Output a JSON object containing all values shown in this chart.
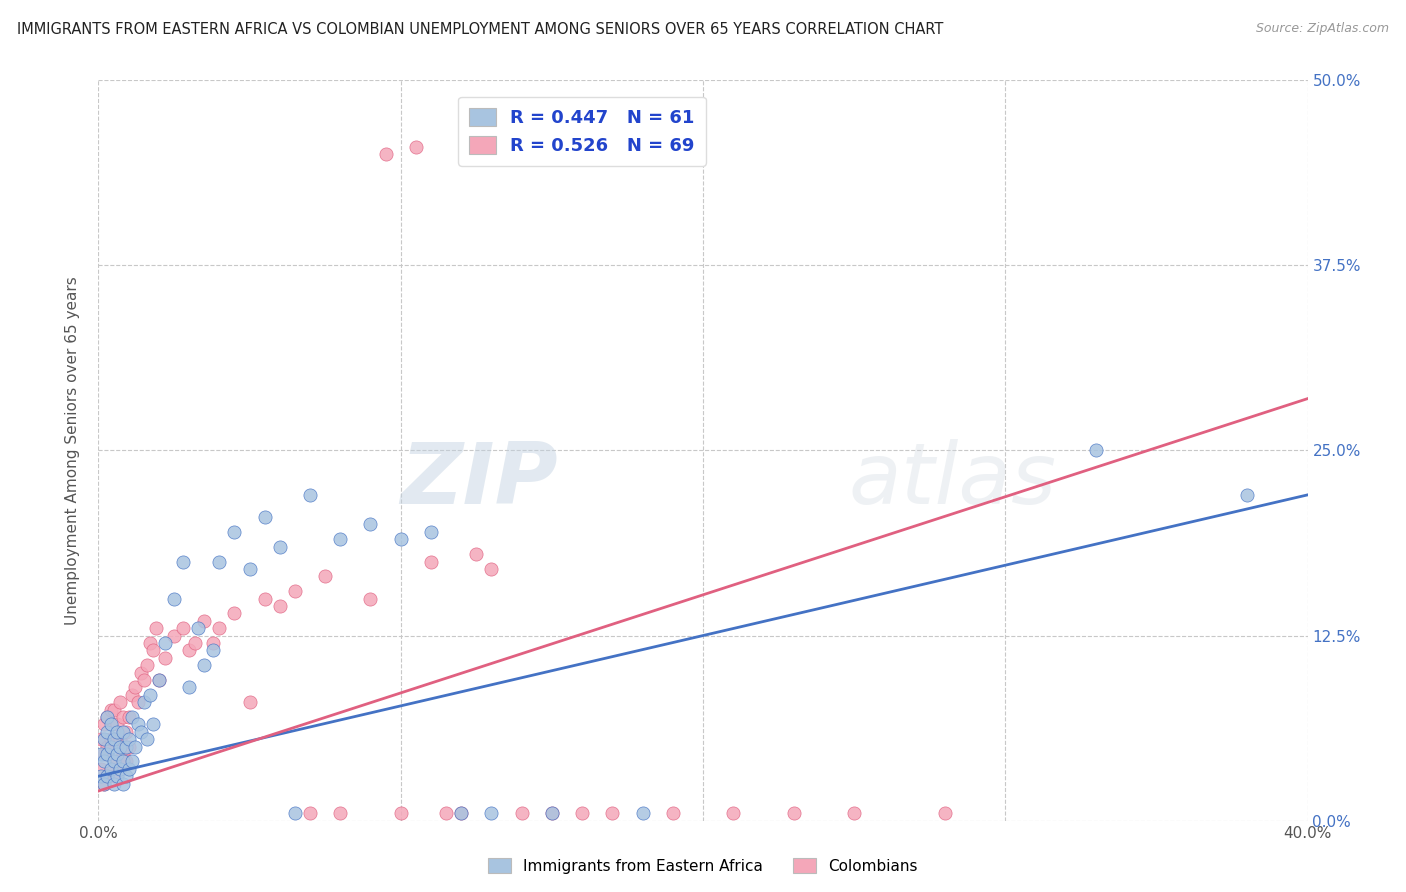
{
  "title": "IMMIGRANTS FROM EASTERN AFRICA VS COLOMBIAN UNEMPLOYMENT AMONG SENIORS OVER 65 YEARS CORRELATION CHART",
  "source": "Source: ZipAtlas.com",
  "ylabel": "Unemployment Among Seniors over 65 years",
  "xlim": [
    0.0,
    0.4
  ],
  "ylim": [
    0.0,
    0.5
  ],
  "watermark": "ZIPatlas",
  "legend_blue_label": "Immigrants from Eastern Africa",
  "legend_pink_label": "Colombians",
  "R_blue": 0.447,
  "N_blue": 61,
  "R_pink": 0.526,
  "N_pink": 69,
  "color_blue": "#a8c4e0",
  "color_pink": "#f4a7b9",
  "line_blue": "#4472c4",
  "line_pink": "#e06080",
  "background": "#ffffff",
  "grid_color": "#c8c8c8",
  "blue_scatter_x": [
    0.001,
    0.001,
    0.002,
    0.002,
    0.002,
    0.003,
    0.003,
    0.003,
    0.003,
    0.004,
    0.004,
    0.004,
    0.005,
    0.005,
    0.005,
    0.006,
    0.006,
    0.006,
    0.007,
    0.007,
    0.008,
    0.008,
    0.008,
    0.009,
    0.009,
    0.01,
    0.01,
    0.011,
    0.011,
    0.012,
    0.013,
    0.014,
    0.015,
    0.016,
    0.017,
    0.018,
    0.02,
    0.022,
    0.025,
    0.028,
    0.03,
    0.033,
    0.035,
    0.038,
    0.04,
    0.045,
    0.05,
    0.055,
    0.06,
    0.065,
    0.07,
    0.08,
    0.09,
    0.1,
    0.11,
    0.12,
    0.13,
    0.15,
    0.18,
    0.33,
    0.38
  ],
  "blue_scatter_y": [
    0.03,
    0.045,
    0.025,
    0.04,
    0.055,
    0.03,
    0.045,
    0.06,
    0.07,
    0.035,
    0.05,
    0.065,
    0.025,
    0.04,
    0.055,
    0.03,
    0.045,
    0.06,
    0.035,
    0.05,
    0.025,
    0.04,
    0.06,
    0.03,
    0.05,
    0.035,
    0.055,
    0.04,
    0.07,
    0.05,
    0.065,
    0.06,
    0.08,
    0.055,
    0.085,
    0.065,
    0.095,
    0.12,
    0.15,
    0.175,
    0.09,
    0.13,
    0.105,
    0.115,
    0.175,
    0.195,
    0.17,
    0.205,
    0.185,
    0.005,
    0.22,
    0.19,
    0.2,
    0.19,
    0.195,
    0.005,
    0.005,
    0.005,
    0.005,
    0.25,
    0.22
  ],
  "pink_scatter_x": [
    0.001,
    0.001,
    0.002,
    0.002,
    0.002,
    0.003,
    0.003,
    0.003,
    0.004,
    0.004,
    0.004,
    0.005,
    0.005,
    0.005,
    0.006,
    0.006,
    0.007,
    0.007,
    0.007,
    0.008,
    0.008,
    0.009,
    0.009,
    0.01,
    0.01,
    0.011,
    0.012,
    0.013,
    0.014,
    0.015,
    0.016,
    0.017,
    0.018,
    0.019,
    0.02,
    0.022,
    0.025,
    0.028,
    0.03,
    0.032,
    0.035,
    0.038,
    0.04,
    0.045,
    0.05,
    0.055,
    0.06,
    0.065,
    0.07,
    0.075,
    0.08,
    0.09,
    0.1,
    0.11,
    0.12,
    0.13,
    0.15,
    0.17,
    0.19,
    0.21,
    0.23,
    0.25,
    0.28,
    0.14,
    0.16,
    0.095,
    0.105,
    0.115,
    0.125
  ],
  "pink_scatter_y": [
    0.035,
    0.055,
    0.025,
    0.045,
    0.065,
    0.03,
    0.05,
    0.07,
    0.035,
    0.055,
    0.075,
    0.03,
    0.055,
    0.075,
    0.04,
    0.065,
    0.035,
    0.055,
    0.08,
    0.045,
    0.07,
    0.04,
    0.06,
    0.05,
    0.07,
    0.085,
    0.09,
    0.08,
    0.1,
    0.095,
    0.105,
    0.12,
    0.115,
    0.13,
    0.095,
    0.11,
    0.125,
    0.13,
    0.115,
    0.12,
    0.135,
    0.12,
    0.13,
    0.14,
    0.08,
    0.15,
    0.145,
    0.155,
    0.005,
    0.165,
    0.005,
    0.15,
    0.005,
    0.175,
    0.005,
    0.17,
    0.005,
    0.005,
    0.005,
    0.005,
    0.005,
    0.005,
    0.005,
    0.005,
    0.005,
    0.45,
    0.455,
    0.005,
    0.18
  ],
  "blue_line_x": [
    0.0,
    0.4
  ],
  "blue_line_y": [
    0.03,
    0.22
  ],
  "pink_line_x": [
    0.0,
    0.4
  ],
  "pink_line_y": [
    0.02,
    0.285
  ]
}
